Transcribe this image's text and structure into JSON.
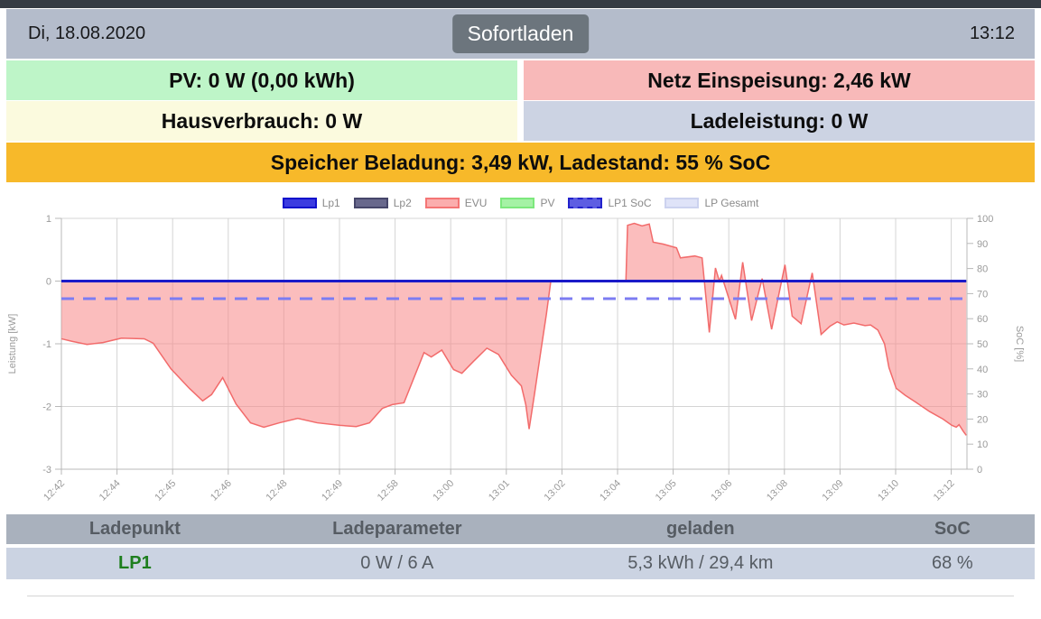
{
  "header": {
    "date": "Di, 18.08.2020",
    "mode_button": "Sofortladen",
    "time": "13:12"
  },
  "info_tiles": {
    "pv": {
      "label": "PV: 0 W (0,00 kWh)",
      "bg": "#bef5c8"
    },
    "grid": {
      "label": "Netz Einspeisung: 2,46 kW",
      "bg": "#f8b9b9"
    },
    "house": {
      "label": "Hausverbrauch: 0 W",
      "bg": "#fbfade"
    },
    "charge": {
      "label": "Ladeleistung: 0 W",
      "bg": "#ccd3e3"
    },
    "battery": {
      "label": "Speicher Beladung: 3,49 kW, Ladestand: 55 % SoC",
      "bg": "#f7b92a"
    }
  },
  "chart_data": {
    "type": "area",
    "x_unit": "tick_index",
    "x_tick_labels": [
      "12:42",
      "12:44",
      "12:45",
      "12:46",
      "12:48",
      "12:49",
      "12:58",
      "13:00",
      "13:01",
      "13:02",
      "13:04",
      "13:05",
      "13:06",
      "13:08",
      "13:09",
      "13:10",
      "13:12"
    ],
    "x_range": [
      0,
      16.27
    ],
    "kw_axis": {
      "label": "Leistung [kW]",
      "min": -3,
      "max": 1,
      "ticks": [
        1,
        0,
        -1,
        -2,
        -3
      ]
    },
    "soc_axis": {
      "label": "SoC [%]",
      "min": 0,
      "max": 100,
      "tick_step": 10
    },
    "grid": true,
    "legend_position": "top",
    "style": {
      "grid": "#d4d4d4",
      "frame": "#b8b8b8",
      "tick_text": "#9a9a9a"
    },
    "legend": [
      {
        "label": "Lp1",
        "fill": "#3b3be0",
        "border": "#1111cc",
        "dashed": false
      },
      {
        "label": "Lp2",
        "fill": "#68688c",
        "border": "#46466a",
        "dashed": false
      },
      {
        "label": "EVU",
        "fill": "#fbadad",
        "border": "#f47575",
        "dashed": false
      },
      {
        "label": "PV",
        "fill": "#a5f2a5",
        "border": "#7de87d",
        "dashed": false
      },
      {
        "label": "LP1 SoC",
        "fill": "#5d5de2",
        "border": "#2222cc",
        "dashed": true
      },
      {
        "label": "LP Gesamt",
        "fill": "#dfe3f8",
        "border": "#ccd2ef",
        "dashed": false
      }
    ],
    "series": [
      {
        "name": "Lp1",
        "axis": "kW",
        "kind": "line",
        "color": "#1a1ac8",
        "width": 3,
        "points": [
          [
            0,
            0
          ],
          [
            16.27,
            0
          ]
        ]
      },
      {
        "name": "Lp2",
        "axis": "kW",
        "kind": "line",
        "color": "#68688c",
        "width": 2,
        "points": []
      },
      {
        "name": "EVU",
        "axis": "kW",
        "kind": "area",
        "line_color": "#f26b6b",
        "fill_color": "rgba(247,135,135,0.55)",
        "width": 1.5,
        "points": [
          [
            0.0,
            -0.92
          ],
          [
            0.19,
            -0.96
          ],
          [
            0.46,
            -1.01
          ],
          [
            0.75,
            -0.98
          ],
          [
            1.08,
            -0.91
          ],
          [
            1.49,
            -0.92
          ],
          [
            1.65,
            -0.99
          ],
          [
            1.97,
            -1.4
          ],
          [
            2.3,
            -1.71
          ],
          [
            2.54,
            -1.91
          ],
          [
            2.7,
            -1.81
          ],
          [
            2.9,
            -1.54
          ],
          [
            3.14,
            -1.96
          ],
          [
            3.4,
            -2.26
          ],
          [
            3.64,
            -2.33
          ],
          [
            3.92,
            -2.26
          ],
          [
            4.25,
            -2.19
          ],
          [
            4.6,
            -2.26
          ],
          [
            5.01,
            -2.3
          ],
          [
            5.3,
            -2.32
          ],
          [
            5.54,
            -2.26
          ],
          [
            5.77,
            -2.03
          ],
          [
            5.95,
            -1.97
          ],
          [
            6.16,
            -1.94
          ],
          [
            6.52,
            -1.14
          ],
          [
            6.65,
            -1.21
          ],
          [
            6.84,
            -1.1
          ],
          [
            7.05,
            -1.41
          ],
          [
            7.2,
            -1.47
          ],
          [
            7.41,
            -1.28
          ],
          [
            7.65,
            -1.07
          ],
          [
            7.86,
            -1.17
          ],
          [
            8.09,
            -1.5
          ],
          [
            8.27,
            -1.67
          ],
          [
            8.35,
            -1.97
          ],
          [
            8.41,
            -2.36
          ],
          [
            8.51,
            -1.78
          ],
          [
            8.63,
            -1.06
          ],
          [
            8.72,
            -0.53
          ],
          [
            8.8,
            0.0
          ],
          [
            10.15,
            0.0
          ],
          [
            10.18,
            0.89
          ],
          [
            10.3,
            0.92
          ],
          [
            10.44,
            0.88
          ],
          [
            10.57,
            0.91
          ],
          [
            10.64,
            0.62
          ],
          [
            10.82,
            0.59
          ],
          [
            11.06,
            0.53
          ],
          [
            11.13,
            0.37
          ],
          [
            11.39,
            0.4
          ],
          [
            11.52,
            0.37
          ],
          [
            11.65,
            -0.82
          ],
          [
            11.76,
            0.21
          ],
          [
            11.83,
            0.0
          ],
          [
            11.87,
            0.09
          ],
          [
            12.12,
            -0.61
          ],
          [
            12.25,
            0.3
          ],
          [
            12.41,
            -0.63
          ],
          [
            12.6,
            0.04
          ],
          [
            12.77,
            -0.77
          ],
          [
            13.01,
            0.26
          ],
          [
            13.14,
            -0.56
          ],
          [
            13.3,
            -0.68
          ],
          [
            13.5,
            0.13
          ],
          [
            13.66,
            -0.85
          ],
          [
            13.82,
            -0.72
          ],
          [
            13.95,
            -0.65
          ],
          [
            14.07,
            -0.7
          ],
          [
            14.25,
            -0.67
          ],
          [
            14.45,
            -0.71
          ],
          [
            14.55,
            -0.7
          ],
          [
            14.68,
            -0.78
          ],
          [
            14.8,
            -1.0
          ],
          [
            14.88,
            -1.38
          ],
          [
            15.01,
            -1.71
          ],
          [
            15.17,
            -1.82
          ],
          [
            15.36,
            -1.93
          ],
          [
            15.61,
            -2.08
          ],
          [
            15.85,
            -2.2
          ],
          [
            16.01,
            -2.3
          ],
          [
            16.09,
            -2.33
          ],
          [
            16.14,
            -2.29
          ],
          [
            16.22,
            -2.4
          ],
          [
            16.27,
            -2.46
          ]
        ]
      },
      {
        "name": "PV",
        "axis": "kW",
        "kind": "line",
        "color": "#7de87d",
        "width": 2,
        "points": []
      },
      {
        "name": "LP1 SoC",
        "axis": "SoC",
        "kind": "line",
        "color": "#7c7cf2",
        "width": 3,
        "dash": "14 10",
        "points": [
          [
            0,
            68
          ],
          [
            16.27,
            68
          ]
        ]
      },
      {
        "name": "LP Gesamt",
        "axis": "kW",
        "kind": "line",
        "color": "#dfe3f8",
        "width": 2,
        "points": []
      }
    ]
  },
  "table": {
    "headers": [
      "Ladepunkt",
      "Ladeparameter",
      "geladen",
      "SoC"
    ],
    "lp1_color": "#1e7e1e",
    "rows": [
      [
        "LP1",
        "0 W / 6 A",
        "5,3 kWh / 29,4 km",
        "68 %"
      ]
    ]
  }
}
